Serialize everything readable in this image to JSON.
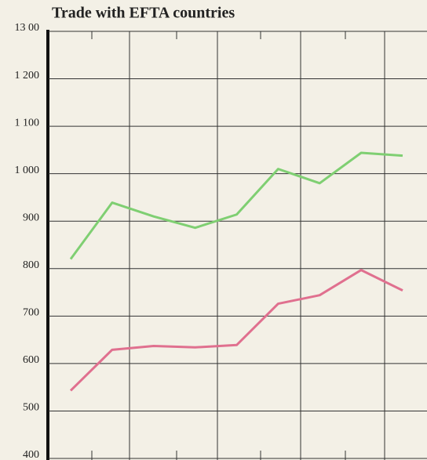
{
  "chart_data": {
    "type": "line",
    "title": "Trade with EFTA countries",
    "categories": [
      null,
      null,
      null,
      null,
      null,
      null,
      null,
      null,
      null
    ],
    "series": [
      {
        "color": "#7fcf72",
        "values": [
          820,
          939,
          910,
          886,
          914,
          1010,
          980,
          1044,
          1038
        ]
      },
      {
        "color": "#e0708f",
        "values": [
          543,
          629,
          637,
          634,
          639,
          726,
          744,
          797,
          754
        ]
      }
    ],
    "ylim": [
      400,
      1300
    ],
    "yticks": [
      {
        "value": 400,
        "label": "400"
      },
      {
        "value": 500,
        "label": "500"
      },
      {
        "value": 600,
        "label": "600"
      },
      {
        "value": 700,
        "label": "700"
      },
      {
        "value": 800,
        "label": "800"
      },
      {
        "value": 900,
        "label": "900"
      },
      {
        "value": 1000,
        "label": "1 000"
      },
      {
        "value": 1100,
        "label": "1 100"
      },
      {
        "value": 1200,
        "label": "1 200"
      },
      {
        "value": 1300,
        "label": "13 00"
      }
    ],
    "grid": true
  }
}
